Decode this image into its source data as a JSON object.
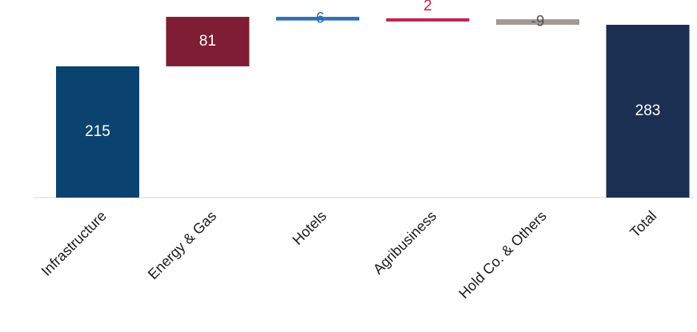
{
  "chart_data": {
    "type": "bar",
    "subtype": "waterfall",
    "title": "",
    "xlabel": "",
    "ylabel": "",
    "categories": [
      "Infrastructure",
      "Energy & Gas",
      "Hotels",
      "Agribusiness",
      "Hold Co. & Others",
      "Total"
    ],
    "values": [
      215,
      81,
      -6,
      2,
      -9,
      283
    ],
    "labels": [
      "215",
      "81",
      "-6",
      "2",
      "-9",
      "283"
    ],
    "is_total": [
      true,
      false,
      false,
      false,
      false,
      true
    ],
    "colors": [
      "#0a4370",
      "#7e1d33",
      "#2f6fb2",
      "#c0224f",
      "#a39990",
      "#1a2f52"
    ],
    "label_colors": [
      "#ffffff",
      "#ffffff",
      "#2f6fb2",
      "#c0224f",
      "#555555",
      "#ffffff"
    ],
    "ylim": [
      0,
      300
    ],
    "grid": false,
    "legend": "none"
  }
}
